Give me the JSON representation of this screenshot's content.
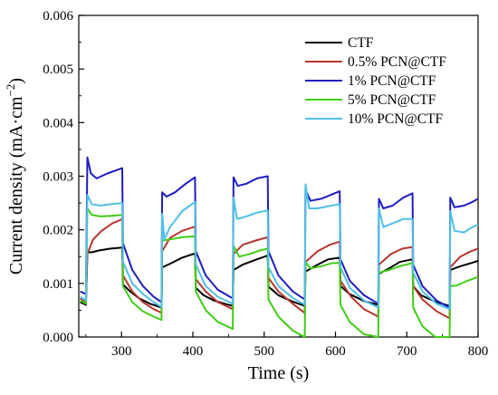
{
  "chart_data": {
    "type": "line",
    "title": "",
    "xlabel": "Time (s)",
    "ylabel_main": "Current density (mA·cm",
    "ylabel_sup": "−2",
    "ylabel_close": ")",
    "xlim": [
      240,
      800
    ],
    "ylim": [
      0,
      0.006
    ],
    "xticks": [
      300,
      400,
      500,
      600,
      700,
      800
    ],
    "xtick_labels": [
      "300",
      "400",
      "500",
      "600",
      "700",
      "800"
    ],
    "yticks": [
      0,
      0.001,
      0.002,
      0.003,
      0.004,
      0.005,
      0.006
    ],
    "ytick_labels": [
      "0.000",
      "0.001",
      "0.002",
      "0.003",
      "0.004",
      "0.005",
      "0.006"
    ],
    "legend_position": "top-right",
    "grid": false,
    "series": [
      {
        "name": "CTF",
        "color": "#000000",
        "points": [
          [
            242,
            0.00065
          ],
          [
            250,
            0.0006
          ],
          [
            252,
            0.00158
          ],
          [
            258,
            0.00158
          ],
          [
            270,
            0.00162
          ],
          [
            285,
            0.00165
          ],
          [
            301,
            0.00167
          ],
          [
            302,
            0.00098
          ],
          [
            312,
            0.00085
          ],
          [
            325,
            0.00072
          ],
          [
            340,
            0.00062
          ],
          [
            356,
            0.00055
          ],
          [
            357,
            0.0013
          ],
          [
            370,
            0.00138
          ],
          [
            385,
            0.00148
          ],
          [
            403,
            0.00156
          ],
          [
            404,
            0.00092
          ],
          [
            415,
            0.00078
          ],
          [
            430,
            0.00068
          ],
          [
            445,
            0.00062
          ],
          [
            456,
            0.00058
          ],
          [
            457,
            0.00125
          ],
          [
            470,
            0.00135
          ],
          [
            490,
            0.00145
          ],
          [
            505,
            0.00152
          ],
          [
            506,
            0.00094
          ],
          [
            520,
            0.00078
          ],
          [
            540,
            0.00066
          ],
          [
            557,
            0.00058
          ],
          [
            558,
            0.00122
          ],
          [
            575,
            0.00135
          ],
          [
            590,
            0.00145
          ],
          [
            606,
            0.00148
          ],
          [
            607,
            0.00095
          ],
          [
            620,
            0.0008
          ],
          [
            640,
            0.00067
          ],
          [
            660,
            0.0006
          ],
          [
            661,
            0.00118
          ],
          [
            675,
            0.00128
          ],
          [
            690,
            0.0014
          ],
          [
            708,
            0.00145
          ],
          [
            709,
            0.00095
          ],
          [
            720,
            0.00078
          ],
          [
            740,
            0.00066
          ],
          [
            760,
            0.00058
          ],
          [
            761,
            0.00125
          ],
          [
            775,
            0.00132
          ],
          [
            790,
            0.00138
          ],
          [
            800,
            0.00142
          ]
        ]
      },
      {
        "name": "0.5% PCN@CTF",
        "color": "#b8352e",
        "points": [
          [
            242,
            0.00072
          ],
          [
            250,
            0.00065
          ],
          [
            252,
            0.00155
          ],
          [
            260,
            0.00182
          ],
          [
            272,
            0.00198
          ],
          [
            287,
            0.00212
          ],
          [
            301,
            0.0022
          ],
          [
            302,
            0.00115
          ],
          [
            315,
            0.00085
          ],
          [
            330,
            0.00065
          ],
          [
            345,
            0.00052
          ],
          [
            356,
            0.00045
          ],
          [
            357,
            0.0016
          ],
          [
            368,
            0.00185
          ],
          [
            385,
            0.00198
          ],
          [
            403,
            0.00206
          ],
          [
            404,
            0.00108
          ],
          [
            418,
            0.00085
          ],
          [
            435,
            0.00065
          ],
          [
            456,
            0.00052
          ],
          [
            457,
            0.00155
          ],
          [
            470,
            0.00172
          ],
          [
            488,
            0.0018
          ],
          [
            505,
            0.00186
          ],
          [
            506,
            0.0011
          ],
          [
            520,
            0.00085
          ],
          [
            540,
            0.00062
          ],
          [
            557,
            0.00045
          ],
          [
            558,
            0.0014
          ],
          [
            575,
            0.0016
          ],
          [
            592,
            0.00172
          ],
          [
            606,
            0.00178
          ],
          [
            607,
            0.00105
          ],
          [
            622,
            0.00075
          ],
          [
            640,
            0.00052
          ],
          [
            660,
            0.00038
          ],
          [
            661,
            0.00135
          ],
          [
            678,
            0.00155
          ],
          [
            694,
            0.00165
          ],
          [
            708,
            0.00168
          ],
          [
            709,
            0.00095
          ],
          [
            722,
            0.0007
          ],
          [
            742,
            0.00048
          ],
          [
            760,
            0.00035
          ],
          [
            761,
            0.0013
          ],
          [
            775,
            0.0015
          ],
          [
            790,
            0.0016
          ],
          [
            800,
            0.00165
          ]
        ]
      },
      {
        "name": "1% PCN@CTF",
        "color": "#1d1dc4",
        "points": [
          [
            242,
            0.00085
          ],
          [
            250,
            0.0008
          ],
          [
            252,
            0.00335
          ],
          [
            257,
            0.00305
          ],
          [
            265,
            0.00296
          ],
          [
            280,
            0.00305
          ],
          [
            301,
            0.00315
          ],
          [
            302,
            0.00175
          ],
          [
            315,
            0.00125
          ],
          [
            330,
            0.00095
          ],
          [
            345,
            0.00075
          ],
          [
            356,
            0.00065
          ],
          [
            357,
            0.0027
          ],
          [
            363,
            0.00262
          ],
          [
            375,
            0.0027
          ],
          [
            390,
            0.00286
          ],
          [
            403,
            0.00298
          ],
          [
            404,
            0.0016
          ],
          [
            418,
            0.00115
          ],
          [
            435,
            0.00088
          ],
          [
            456,
            0.00072
          ],
          [
            457,
            0.00298
          ],
          [
            463,
            0.00282
          ],
          [
            475,
            0.00286
          ],
          [
            490,
            0.00296
          ],
          [
            505,
            0.003
          ],
          [
            506,
            0.0016
          ],
          [
            520,
            0.00115
          ],
          [
            540,
            0.00085
          ],
          [
            557,
            0.0007
          ],
          [
            558,
            0.00275
          ],
          [
            565,
            0.00254
          ],
          [
            580,
            0.00258
          ],
          [
            595,
            0.00266
          ],
          [
            606,
            0.00272
          ],
          [
            607,
            0.00145
          ],
          [
            620,
            0.00105
          ],
          [
            640,
            0.00078
          ],
          [
            660,
            0.00062
          ],
          [
            661,
            0.00258
          ],
          [
            667,
            0.0024
          ],
          [
            680,
            0.00245
          ],
          [
            695,
            0.0026
          ],
          [
            708,
            0.00268
          ],
          [
            709,
            0.00135
          ],
          [
            722,
            0.00095
          ],
          [
            742,
            0.00068
          ],
          [
            760,
            0.00055
          ],
          [
            761,
            0.0026
          ],
          [
            767,
            0.00242
          ],
          [
            780,
            0.00245
          ],
          [
            792,
            0.00252
          ],
          [
            800,
            0.00258
          ]
        ]
      },
      {
        "name": "5% PCN@CTF",
        "color": "#3fcd15",
        "points": [
          [
            242,
            0.00068
          ],
          [
            250,
            0.00062
          ],
          [
            252,
            0.0024
          ],
          [
            258,
            0.00228
          ],
          [
            270,
            0.00225
          ],
          [
            286,
            0.00226
          ],
          [
            301,
            0.00228
          ],
          [
            302,
            0.00095
          ],
          [
            315,
            0.00065
          ],
          [
            330,
            0.00048
          ],
          [
            345,
            0.00038
          ],
          [
            356,
            0.00032
          ],
          [
            357,
            0.0018
          ],
          [
            368,
            0.00182
          ],
          [
            385,
            0.00186
          ],
          [
            403,
            0.00188
          ],
          [
            404,
            0.00085
          ],
          [
            418,
            0.0005
          ],
          [
            435,
            0.00028
          ],
          [
            456,
            0.00015
          ],
          [
            457,
            0.0017
          ],
          [
            465,
            0.0015
          ],
          [
            480,
            0.00155
          ],
          [
            495,
            0.00162
          ],
          [
            505,
            0.00165
          ],
          [
            506,
            0.0007
          ],
          [
            520,
            0.00038
          ],
          [
            540,
            0.00012
          ],
          [
            557,
            0.0
          ],
          [
            558,
            0.0014
          ],
          [
            565,
            0.00128
          ],
          [
            580,
            0.00132
          ],
          [
            595,
            0.00138
          ],
          [
            606,
            0.00138
          ],
          [
            607,
            0.0006
          ],
          [
            620,
            0.00028
          ],
          [
            640,
            5e-05
          ],
          [
            660,
            0.0
          ],
          [
            661,
            0.0012
          ],
          [
            675,
            0.00125
          ],
          [
            690,
            0.00132
          ],
          [
            708,
            0.00138
          ],
          [
            709,
            0.00055
          ],
          [
            722,
            0.0002
          ],
          [
            740,
            0.0
          ],
          [
            760,
            0.0
          ],
          [
            761,
            0.00095
          ],
          [
            770,
            0.00096
          ],
          [
            785,
            0.00105
          ],
          [
            800,
            0.00112
          ]
        ]
      },
      {
        "name": "10% PCN@CTF",
        "color": "#4fbfe8",
        "points": [
          [
            242,
            0.00075
          ],
          [
            250,
            0.00068
          ],
          [
            252,
            0.00265
          ],
          [
            258,
            0.00248
          ],
          [
            270,
            0.00245
          ],
          [
            286,
            0.00248
          ],
          [
            301,
            0.0025
          ],
          [
            302,
            0.0014
          ],
          [
            315,
            0.001
          ],
          [
            330,
            0.0008
          ],
          [
            345,
            0.00065
          ],
          [
            356,
            0.00056
          ],
          [
            357,
            0.0023
          ],
          [
            360,
            0.00182
          ],
          [
            368,
            0.00205
          ],
          [
            385,
            0.00235
          ],
          [
            403,
            0.00252
          ],
          [
            404,
            0.00135
          ],
          [
            418,
            0.00095
          ],
          [
            435,
            0.00075
          ],
          [
            456,
            0.00062
          ],
          [
            457,
            0.0026
          ],
          [
            462,
            0.0022
          ],
          [
            475,
            0.00225
          ],
          [
            490,
            0.00232
          ],
          [
            505,
            0.00236
          ],
          [
            506,
            0.0013
          ],
          [
            520,
            0.00095
          ],
          [
            540,
            0.00073
          ],
          [
            557,
            0.0006
          ],
          [
            558,
            0.00285
          ],
          [
            563,
            0.0024
          ],
          [
            575,
            0.0024
          ],
          [
            590,
            0.00244
          ],
          [
            606,
            0.00248
          ],
          [
            607,
            0.0013
          ],
          [
            620,
            0.00092
          ],
          [
            640,
            0.00068
          ],
          [
            660,
            0.00055
          ],
          [
            661,
            0.0024
          ],
          [
            667,
            0.00205
          ],
          [
            680,
            0.00212
          ],
          [
            695,
            0.0022
          ],
          [
            708,
            0.0022
          ],
          [
            709,
            0.0012
          ],
          [
            722,
            0.00085
          ],
          [
            742,
            0.00062
          ],
          [
            760,
            0.00052
          ],
          [
            761,
            0.00235
          ],
          [
            767,
            0.00198
          ],
          [
            780,
            0.00195
          ],
          [
            792,
            0.00205
          ],
          [
            800,
            0.0021
          ]
        ]
      }
    ]
  }
}
